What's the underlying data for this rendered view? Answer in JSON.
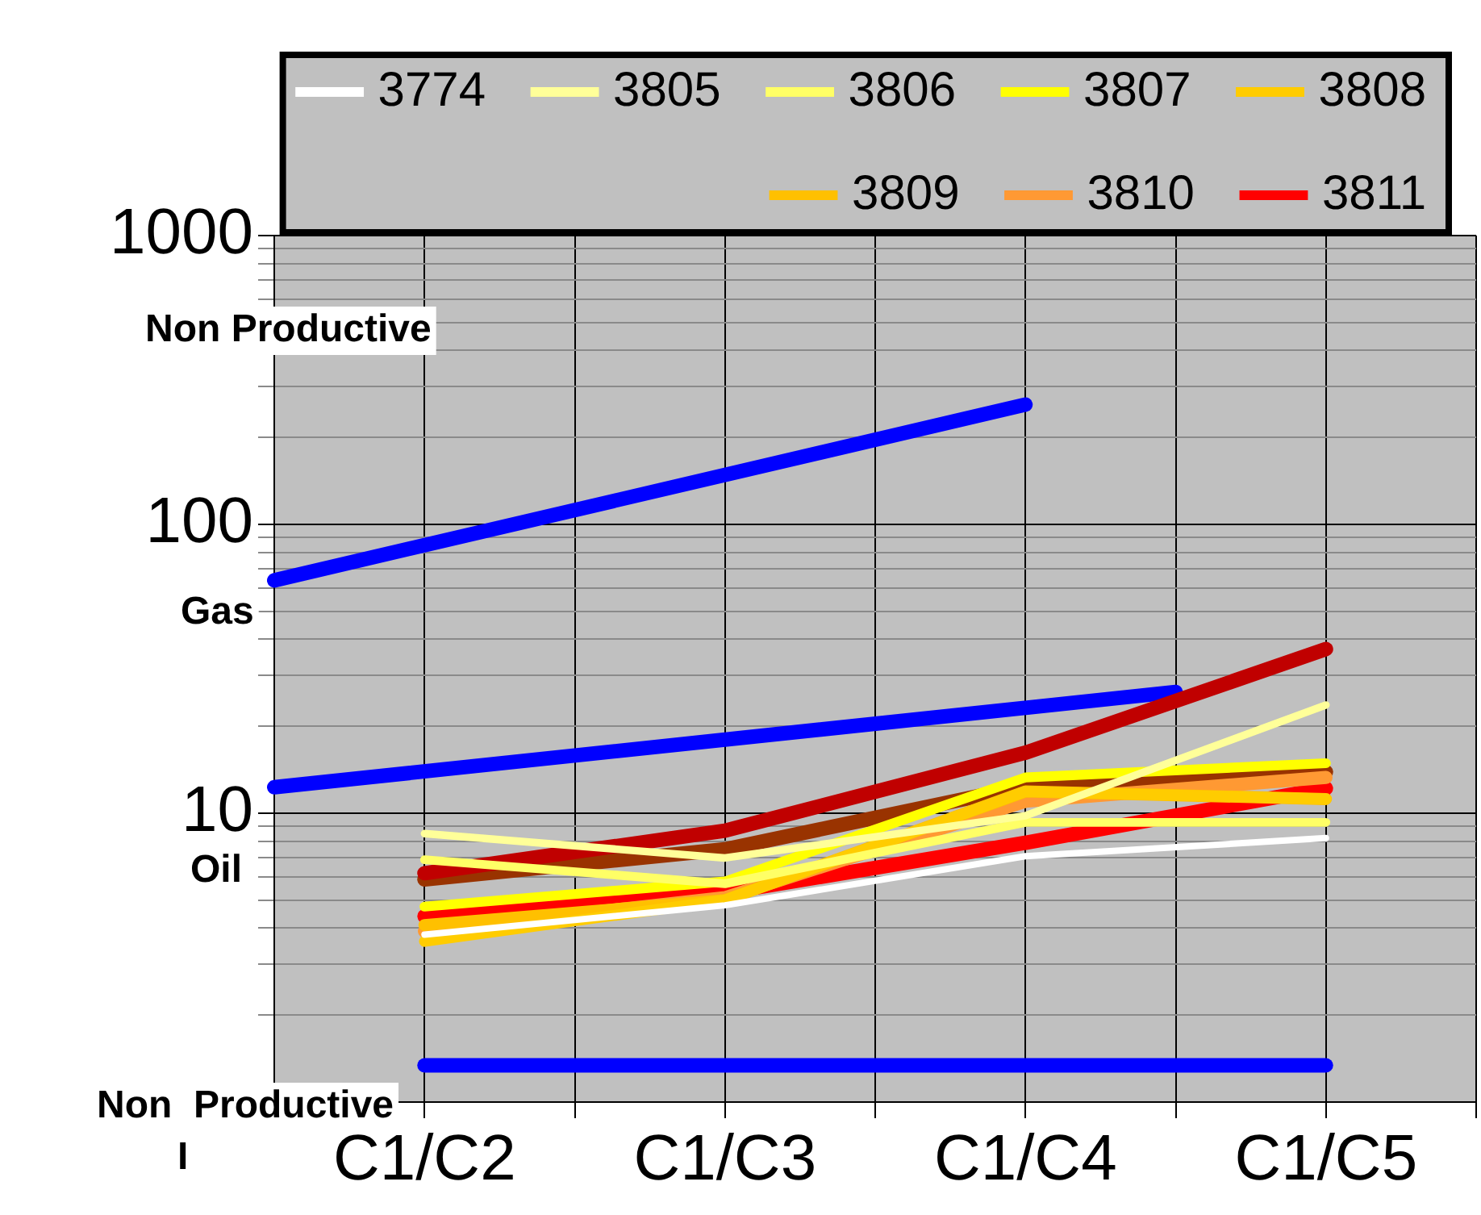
{
  "chart_data": {
    "type": "line",
    "log": "y",
    "grid": true,
    "legend": "top",
    "marker": "none",
    "line_style": "solid",
    "categories": [
      null,
      "C1/C2",
      null,
      "C1/C3",
      null,
      "C1/C4",
      null,
      "C1/C5",
      null
    ],
    "ylim": [
      1,
      1000
    ],
    "yticks": [
      {
        "value": 1,
        "label": null
      },
      {
        "value": 2,
        "label": null
      },
      {
        "value": 3,
        "label": null
      },
      {
        "value": 4,
        "label": null
      },
      {
        "value": 5,
        "label": null
      },
      {
        "value": 6,
        "label": null
      },
      {
        "value": 7,
        "label": null
      },
      {
        "value": 8,
        "label": null
      },
      {
        "value": 9,
        "label": null
      },
      10,
      {
        "value": 20,
        "label": null
      },
      {
        "value": 30,
        "label": null
      },
      {
        "value": 40,
        "label": null
      },
      {
        "value": 50,
        "label": null
      },
      {
        "value": 60,
        "label": null
      },
      {
        "value": 70,
        "label": null
      },
      {
        "value": 80,
        "label": null
      },
      {
        "value": 90,
        "label": null
      },
      100,
      {
        "value": 200,
        "label": null
      },
      {
        "value": 300,
        "label": null
      },
      {
        "value": 400,
        "label": null
      },
      {
        "value": 500,
        "label": null
      },
      {
        "value": 600,
        "label": null
      },
      {
        "value": 700,
        "label": null
      },
      {
        "value": 800,
        "label": null
      },
      {
        "value": 900,
        "label": null
      },
      1000
    ],
    "series": [
      {
        "name": "3774",
        "color": "#ffffff",
        "values": [
          null,
          3.8,
          null,
          4.8,
          null,
          7.1,
          null,
          8.2,
          null
        ]
      },
      {
        "name": "3805",
        "color": "#ffff99",
        "values": [
          null,
          8.5,
          null,
          7.0,
          null,
          9.8,
          null,
          23.7,
          null
        ]
      },
      {
        "name": "3806",
        "color": "#ffff66",
        "values": [
          null,
          6.9,
          null,
          5.7,
          null,
          9.3,
          null,
          9.3,
          null
        ]
      },
      {
        "name": "3807",
        "color": "#ffff00",
        "values": [
          null,
          4.75,
          null,
          5.8,
          null,
          13.3,
          null,
          14.9,
          null
        ]
      },
      {
        "name": "3808",
        "color": "#ffcc00",
        "values": [
          null,
          3.6,
          null,
          5.0,
          null,
          11.9,
          null,
          11.2,
          null
        ]
      },
      {
        "name": "3809",
        "color": "#ffc000",
        "values": [
          null,
          4.1,
          null,
          5.0,
          null,
          11.9,
          null,
          11.2,
          null
        ]
      },
      {
        "name": "3810",
        "color": "#ff9933",
        "values": [
          null,
          3.9,
          null,
          5.1,
          null,
          11.0,
          null,
          13.3,
          null
        ]
      },
      {
        "name": "3811",
        "color": "#ff0000",
        "values": [
          null,
          4.4,
          null,
          5.3,
          null,
          7.9,
          null,
          12.2,
          null
        ]
      },
      {
        "color": "#c00000",
        "values": [
          null,
          6.2,
          null,
          8.7,
          null,
          16.2,
          null,
          37,
          null
        ]
      },
      {
        "color": "#993300",
        "values": [
          null,
          5.9,
          null,
          7.5,
          null,
          12.4,
          null,
          13.9,
          null
        ]
      },
      {
        "color": "#0000ff",
        "values": [
          64,
          null,
          null,
          null,
          null,
          260,
          null,
          null,
          null
        ]
      },
      {
        "color": "#0000ff",
        "values": [
          12.3,
          null,
          null,
          null,
          null,
          null,
          26.3,
          null,
          null
        ]
      },
      {
        "color": "#0000ff",
        "values": [
          null,
          1.34,
          null,
          null,
          null,
          null,
          null,
          1.34,
          null
        ]
      }
    ],
    "annotations": [
      "Non Productive",
      "Gas",
      "Oil",
      "Non  Productive",
      "I"
    ]
  }
}
